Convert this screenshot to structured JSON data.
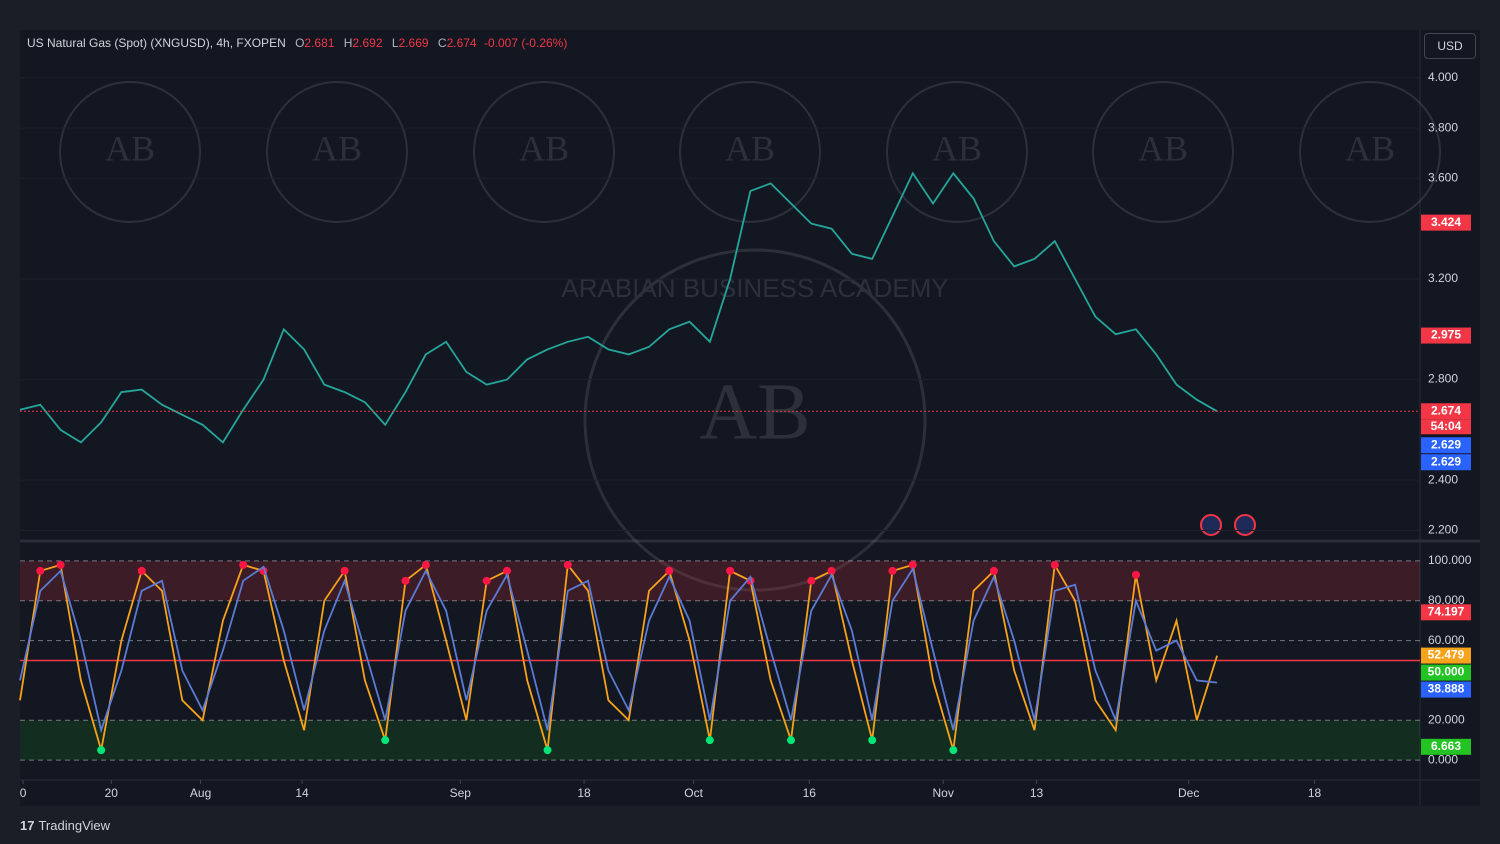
{
  "header": {
    "symbol": "US Natural Gas (Spot) (XNGUSD), 4h, FXOPEN",
    "o_label": "O",
    "o": "2.681",
    "h_label": "H",
    "h": "2.692",
    "l_label": "L",
    "l": "2.669",
    "c_label": "C",
    "c": "2.674",
    "change": "-0.007 (-0.26%)"
  },
  "currency": "USD",
  "brand": "TradingView",
  "watermark": {
    "initials": "AB",
    "name": "ARABIAN BUSINESS ACADEMY"
  },
  "chart_data": [
    {
      "type": "line",
      "color": "#26a69a",
      "x": [
        0,
        1,
        2,
        3,
        4,
        5,
        6,
        7,
        8,
        9,
        10,
        11,
        12,
        13,
        14,
        15,
        16,
        17,
        18,
        19,
        20,
        21,
        22,
        23,
        24,
        25,
        26,
        27,
        28,
        29,
        30,
        31,
        32,
        33,
        34,
        35,
        36,
        37,
        38,
        39,
        40,
        41,
        42,
        43,
        44,
        45,
        46,
        47,
        48,
        49,
        50,
        51,
        52,
        53,
        54,
        55,
        56,
        57,
        58,
        59
      ],
      "values": [
        2.68,
        2.7,
        2.6,
        2.55,
        2.63,
        2.75,
        2.76,
        2.7,
        2.66,
        2.62,
        2.55,
        2.68,
        2.8,
        3.0,
        2.92,
        2.78,
        2.75,
        2.71,
        2.62,
        2.75,
        2.9,
        2.95,
        2.83,
        2.78,
        2.8,
        2.88,
        2.92,
        2.95,
        2.97,
        2.92,
        2.9,
        2.93,
        3.0,
        3.03,
        2.95,
        3.2,
        3.55,
        3.58,
        3.5,
        3.42,
        3.4,
        3.3,
        3.28,
        3.45,
        3.62,
        3.5,
        3.62,
        3.52,
        3.35,
        3.25,
        3.28,
        3.35,
        3.2,
        3.05,
        2.98,
        3.0,
        2.9,
        2.78,
        2.72,
        2.674
      ],
      "xlim": [
        0,
        69
      ],
      "xticks": [
        {
          "value": 0.15,
          "label": "0"
        },
        {
          "value": 4.5,
          "label": "20"
        },
        {
          "value": 8.9,
          "label": "Aug"
        },
        {
          "value": 13.9,
          "label": "14"
        },
        {
          "value": 21.7,
          "label": "Sep"
        },
        {
          "value": 27.8,
          "label": "18"
        },
        {
          "value": 33.2,
          "label": "Oct"
        },
        {
          "value": 38.9,
          "label": "16"
        },
        {
          "value": 45.5,
          "label": "Nov"
        },
        {
          "value": 50.1,
          "label": "13"
        },
        {
          "value": 57.6,
          "label": "Dec"
        },
        {
          "value": 63.8,
          "label": "18"
        }
      ],
      "ylim": [
        2.17,
        4.19
      ],
      "yticks": [
        {
          "value": 4.0,
          "label": "4.000"
        },
        {
          "value": 3.8,
          "label": "3.800"
        },
        {
          "value": 3.6,
          "label": "3.600"
        },
        {
          "value": 3.2,
          "label": "3.200"
        },
        {
          "value": 2.8,
          "label": "2.800"
        },
        {
          "value": 2.4,
          "label": "2.400"
        },
        {
          "value": 2.2,
          "label": "2.200"
        }
      ],
      "price_labels": [
        {
          "value": 3.424,
          "label": "3.424",
          "color": "#f23645"
        },
        {
          "value": 2.975,
          "label": "2.975",
          "color": "#f23645"
        },
        {
          "value": 2.674,
          "label": "2.674",
          "color": "#f23645"
        },
        {
          "value": 2.629,
          "label": "2.629",
          "color": "#2962ff"
        },
        {
          "value": 2.629,
          "label": "2.629",
          "color": "#2962ff"
        }
      ],
      "countdown": "54:04"
    },
    {
      "type": "line",
      "series": [
        {
          "color": "#f7a21b",
          "values": [
            30,
            95,
            98,
            40,
            5,
            60,
            95,
            85,
            30,
            20,
            70,
            98,
            95,
            50,
            15,
            80,
            95,
            40,
            10,
            90,
            98,
            60,
            20,
            90,
            95,
            40,
            5,
            98,
            85,
            30,
            20,
            85,
            95,
            60,
            10,
            95,
            90,
            40,
            10,
            90,
            95,
            50,
            10,
            95,
            98,
            40,
            5,
            85,
            95,
            45,
            15,
            98,
            80,
            30,
            15,
            93,
            40,
            70,
            20,
            52.479
          ]
        },
        {
          "color": "#5b7bd5",
          "values": [
            40,
            85,
            95,
            60,
            15,
            45,
            85,
            90,
            45,
            25,
            55,
            90,
            97,
            65,
            25,
            65,
            90,
            55,
            20,
            75,
            95,
            75,
            30,
            75,
            93,
            55,
            15,
            85,
            90,
            45,
            25,
            70,
            92,
            70,
            20,
            80,
            92,
            55,
            20,
            75,
            93,
            65,
            20,
            80,
            96,
            55,
            15,
            70,
            92,
            60,
            20,
            85,
            88,
            45,
            20,
            80,
            55,
            60,
            40,
            38.888
          ]
        }
      ],
      "ylim": [
        -10,
        108
      ],
      "yticks": [
        {
          "value": 100,
          "label": "100.000"
        },
        {
          "value": 80,
          "label": "80.000"
        },
        {
          "value": 60,
          "label": "60.000"
        },
        {
          "value": 20,
          "label": "20.000"
        },
        {
          "value": 0,
          "label": "0.000"
        }
      ],
      "overbought": 80,
      "oversold": 20,
      "midline": 50,
      "value_labels": [
        {
          "value": 74.197,
          "label": "74.197",
          "color": "#f23645"
        },
        {
          "value": 52.479,
          "label": "52.479",
          "color": "#f7a21b"
        },
        {
          "value": 50,
          "label": "50.000",
          "color": "#22c322"
        },
        {
          "value": 38.888,
          "label": "38.888",
          "color": "#2962ff"
        },
        {
          "value": 6.663,
          "label": "6.663",
          "color": "#22c322"
        }
      ]
    }
  ]
}
